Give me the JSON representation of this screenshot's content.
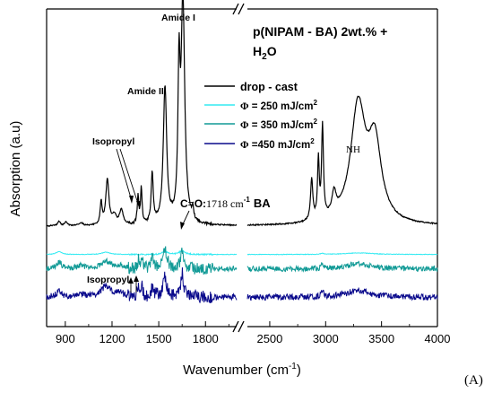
{
  "chart_data": {
    "type": "line",
    "panel_label": "(A)",
    "title_main": "p(NIPAM - BA) 2wt.% +",
    "title_solvent": "H",
    "title_sub": "2",
    "title_tail": "O",
    "xlabel": "Wavenumber (cm",
    "xlabel_sup": "-1",
    "xlabel_tail": ")",
    "ylabel": "Absorption (a.u)",
    "axis_break": true,
    "x_segments": [
      {
        "range": [
          780,
          2000
        ],
        "ticks": [
          "900",
          "1200",
          "1500",
          "1800"
        ],
        "tick_values": [
          900,
          1200,
          1500,
          1800
        ]
      },
      {
        "range": [
          2300,
          4000
        ],
        "ticks": [
          "2500",
          "3000",
          "3500",
          "4000"
        ],
        "tick_values": [
          2500,
          3000,
          3500,
          4000
        ]
      }
    ],
    "y_ticks_shown": false,
    "legend": {
      "position": "upper-middle",
      "entries": [
        {
          "prefix": "",
          "label": "drop - cast",
          "color": "#000000"
        },
        {
          "prefix": "Φ",
          "label": " = 250 mJ/cm",
          "sup": "2",
          "color": "#33eaf2"
        },
        {
          "prefix": "Φ",
          "label": " = 350 mJ/cm",
          "sup": "2",
          "color": "#119a96"
        },
        {
          "prefix": "Φ",
          "label": " =450 mJ/cm",
          "sup": "2",
          "color": "#0a0a8c"
        }
      ]
    },
    "annotations": {
      "amide1": "Amide I",
      "amide2": "Amide II",
      "isopropyl": "Isopropyl",
      "isopropyl_low": "Isopropyl",
      "nh": "NH",
      "co_prefix": "C",
      "co_eq": "=",
      "co_mid": "O:",
      "co_num": "1718 cm",
      "co_sup": "-1",
      "co_ba": "BA"
    },
    "series": [
      {
        "name": "drop - cast",
        "color": "#000000",
        "baseline": 0.14,
        "noise": 0.004,
        "peaks": [
          [
            860,
            0.03,
            10
          ],
          [
            905,
            0.025,
            10
          ],
          [
            1000,
            0.02,
            15
          ],
          [
            1130,
            0.15,
            7
          ],
          [
            1170,
            0.3,
            12
          ],
          [
            1215,
            0.06,
            15
          ],
          [
            1260,
            0.1,
            14
          ],
          [
            1367,
            0.18,
            6
          ],
          [
            1388,
            0.23,
            6
          ],
          [
            1458,
            0.33,
            8
          ],
          [
            1540,
            0.9,
            13
          ],
          [
            1630,
            0.9,
            8
          ],
          [
            1655,
            1.45,
            14
          ],
          [
            1718,
            0.07,
            6
          ],
          [
            2875,
            0.27,
            12
          ],
          [
            2935,
            0.38,
            9
          ],
          [
            2972,
            0.6,
            10
          ],
          [
            3075,
            0.14,
            22
          ],
          [
            3290,
            0.76,
            80
          ],
          [
            3440,
            0.5,
            70
          ]
        ]
      },
      {
        "name": "Φ = 250 mJ/cm2",
        "color": "#33eaf2",
        "baseline": -0.045,
        "noise": 0.002,
        "peaks": [
          [
            860,
            0.02,
            20
          ],
          [
            1160,
            0.015,
            30
          ],
          [
            1540,
            0.02,
            20
          ],
          [
            1650,
            0.025,
            20
          ],
          [
            2970,
            0.006,
            15
          ],
          [
            3300,
            0.01,
            150
          ]
        ]
      },
      {
        "name": "Φ = 350 mJ/cm2",
        "color": "#119a96",
        "baseline": -0.14,
        "noise": 0.018,
        "peaks": [
          [
            860,
            0.045,
            20
          ],
          [
            1000,
            0.02,
            30
          ],
          [
            1160,
            0.05,
            35
          ],
          [
            1250,
            0.02,
            30
          ],
          [
            1370,
            0.05,
            8
          ],
          [
            1390,
            0.06,
            8
          ],
          [
            1460,
            0.06,
            10
          ],
          [
            1540,
            0.12,
            15
          ],
          [
            1650,
            0.12,
            12
          ],
          [
            2970,
            0.03,
            12
          ],
          [
            3290,
            0.035,
            120
          ]
        ]
      },
      {
        "name": "Φ =450 mJ/cm2",
        "color": "#0a0a8c",
        "baseline": -0.325,
        "noise": 0.02,
        "peaks": [
          [
            860,
            0.04,
            20
          ],
          [
            1000,
            0.02,
            30
          ],
          [
            1160,
            0.07,
            35
          ],
          [
            1250,
            0.03,
            30
          ],
          [
            1370,
            0.06,
            8
          ],
          [
            1390,
            0.07,
            8
          ],
          [
            1460,
            0.07,
            10
          ],
          [
            1540,
            0.13,
            15
          ],
          [
            1650,
            0.15,
            12
          ],
          [
            2970,
            0.04,
            12
          ],
          [
            3290,
            0.045,
            120
          ]
        ]
      }
    ]
  }
}
